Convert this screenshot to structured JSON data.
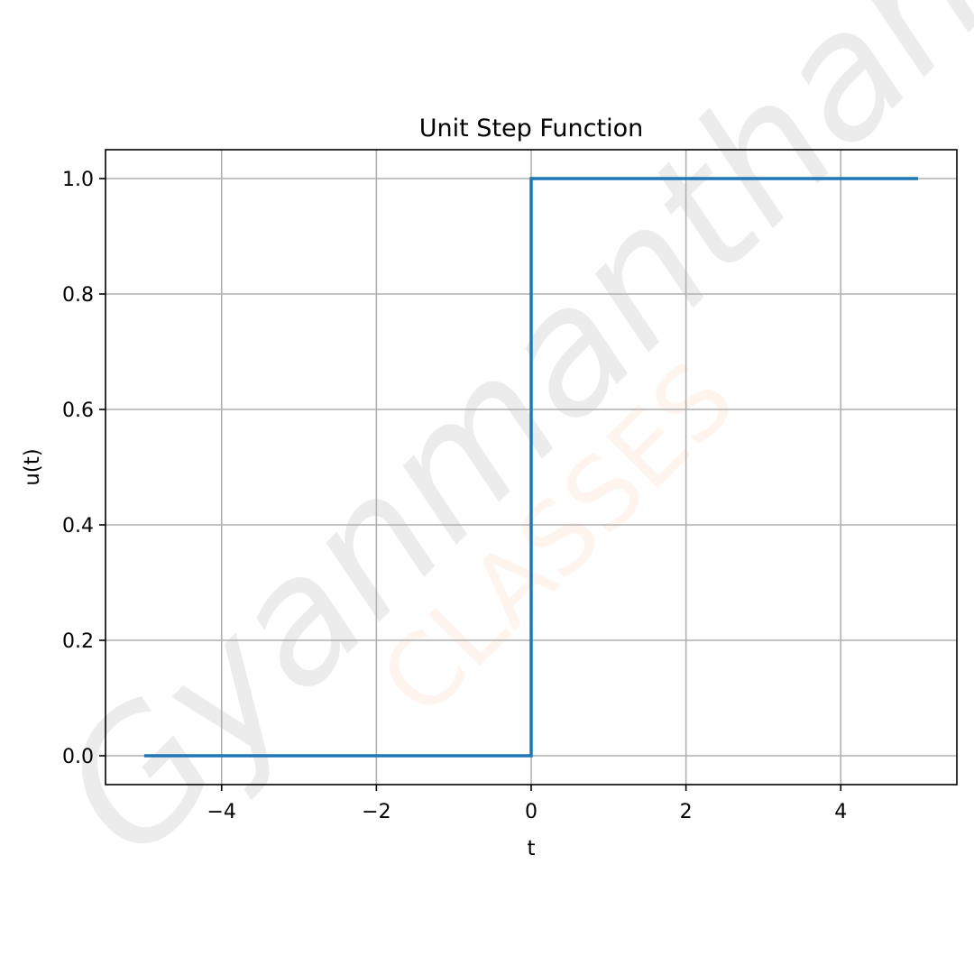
{
  "chart_data": {
    "type": "line",
    "title": "Unit Step Function",
    "xlabel": "t",
    "ylabel": "u(t)",
    "xlim": [
      -5.5,
      5.5
    ],
    "ylim": [
      -0.05,
      1.05
    ],
    "xticks": [
      -4,
      -2,
      0,
      2,
      4
    ],
    "xtick_labels": [
      "−4",
      "−2",
      "0",
      "2",
      "4"
    ],
    "yticks": [
      0.0,
      0.2,
      0.4,
      0.6,
      0.8,
      1.0
    ],
    "ytick_labels": [
      "0.0",
      "0.2",
      "0.4",
      "0.6",
      "0.8",
      "1.0"
    ],
    "grid": true,
    "series": [
      {
        "color": "#1f77b4",
        "x": [
          -5,
          0,
          0,
          5
        ],
        "y": [
          0,
          0,
          1,
          1
        ]
      }
    ]
  },
  "watermark": {
    "text": "Gyanmanthan",
    "subtext": "CLASSES"
  }
}
